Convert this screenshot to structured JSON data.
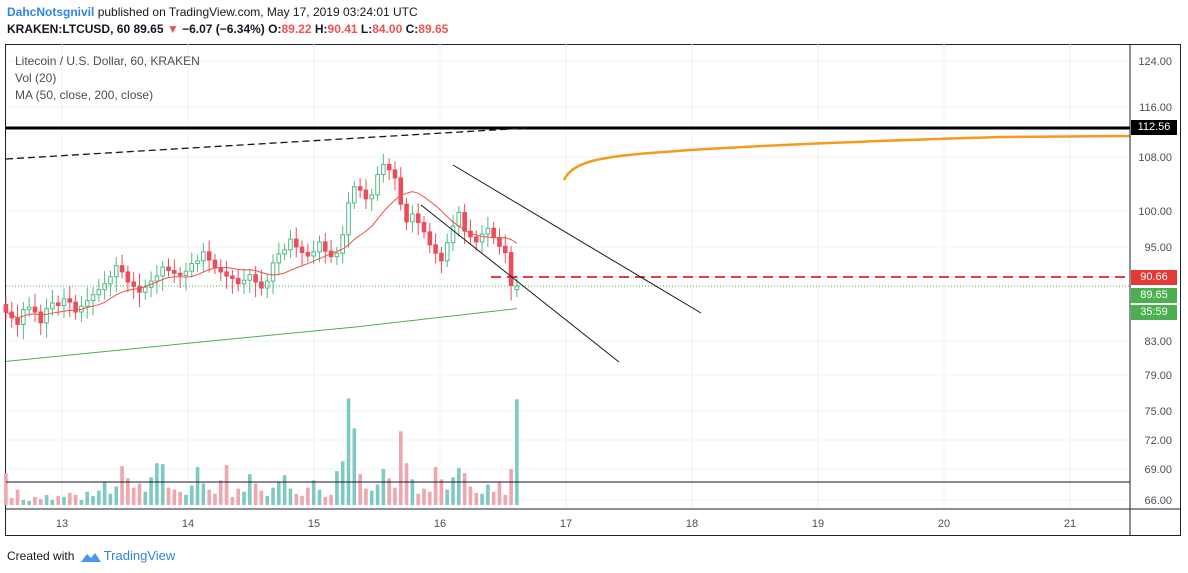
{
  "header": {
    "author": "DahcNotsgnivil",
    "published_text": "published on TradingView.com, May 17, 2019 03:24:01 UTC",
    "symbol_line": {
      "symbol": "KRAKEN:LTCUSD, 60",
      "last": "89.65",
      "change_arrow": "▼",
      "change": "−6.07 (−6.34%)",
      "o_label": "O:",
      "o_value": "89.22",
      "h_label": "H:",
      "h_value": "90.41",
      "l_label": "L:",
      "l_value": "84.00",
      "c_label": "C:",
      "c_value": "89.65"
    }
  },
  "legend": {
    "title": "Litecoin / U.S. Dollar, 60, KRAKEN",
    "volume": "Vol (20)",
    "ma": "MA (50, close, 200, close)"
  },
  "price_badges": {
    "resistance": "112.56",
    "level": "90.66",
    "last": "89.65",
    "countdown": "35:59"
  },
  "footer": {
    "created_with": "Created with",
    "brand": "TradingView"
  },
  "colors": {
    "up": "#53b987",
    "down": "#eb4d5c",
    "vol_up": "#7fc9c3",
    "vol_down": "#f0a6ad",
    "ma50": "#f0504a",
    "ma200": "#4caf50",
    "projection": "#f59a1b",
    "level": "#e53935",
    "accent": "#2e85e6"
  },
  "chart_data": {
    "type": "candlestick",
    "y_axis_ticks": [
      124.0,
      116.0,
      108.0,
      100.0,
      95.0,
      90.66,
      89.65,
      83.0,
      79.0,
      75.0,
      72.0,
      69.0,
      66.0
    ],
    "y_tick_labels": [
      "124.00",
      "116.00",
      "108.00",
      "100.00",
      "95.00",
      "83.00",
      "79.00",
      "75.00",
      "72.00",
      "69.00",
      "66.00"
    ],
    "x_axis_ticks": [
      "13",
      "14",
      "15",
      "16",
      "17",
      "18",
      "19",
      "20",
      "21"
    ],
    "closes": [
      86.5,
      85.8,
      85.0,
      86.8,
      87.1,
      86.5,
      85.2,
      86.9,
      87.6,
      87.3,
      88.1,
      87.7,
      86.5,
      87.2,
      87.9,
      88.6,
      89.2,
      89.9,
      90.7,
      92.3,
      91.4,
      90.1,
      89.6,
      88.9,
      89.5,
      90.2,
      90.8,
      92.1,
      91.6,
      91.2,
      90.9,
      91.5,
      92.6,
      93.0,
      94.3,
      93.1,
      92.0,
      91.4,
      90.8,
      90.5,
      89.9,
      90.3,
      91.0,
      90.1,
      89.4,
      90.2,
      92.7,
      94.0,
      94.6,
      96.1,
      95.0,
      94.2,
      93.7,
      94.3,
      95.7,
      94.4,
      93.6,
      94.1,
      96.7,
      101.2,
      103.6,
      103.1,
      101.8,
      102.4,
      105.4,
      106.9,
      106.1,
      104.9,
      101.0,
      98.5,
      99.6,
      98.4,
      97.1,
      95.3,
      94.1,
      93.0,
      95.6,
      97.9,
      99.8,
      97.2,
      96.4,
      95.7,
      96.8,
      97.6,
      96.3,
      95.1,
      94.2,
      89.7,
      89.65
    ],
    "opens": [
      87.4,
      86.5,
      85.8,
      85.0,
      86.8,
      87.1,
      86.5,
      85.2,
      86.9,
      87.6,
      87.3,
      88.1,
      87.7,
      86.5,
      87.2,
      87.9,
      88.6,
      89.2,
      89.9,
      90.7,
      92.3,
      91.4,
      90.1,
      89.6,
      88.9,
      89.5,
      90.2,
      90.8,
      92.1,
      91.6,
      91.2,
      90.9,
      91.5,
      92.6,
      93.0,
      94.3,
      93.1,
      92.0,
      91.4,
      90.8,
      90.5,
      89.9,
      90.3,
      91.0,
      90.1,
      89.4,
      90.2,
      92.7,
      94.0,
      94.6,
      96.1,
      95.0,
      94.2,
      93.7,
      94.3,
      95.7,
      94.4,
      93.6,
      94.1,
      96.7,
      101.2,
      103.6,
      103.1,
      101.8,
      102.4,
      105.4,
      106.9,
      106.1,
      104.9,
      101.0,
      98.5,
      99.6,
      98.4,
      97.1,
      95.3,
      94.1,
      93.0,
      95.6,
      97.9,
      99.8,
      97.2,
      96.4,
      95.7,
      96.8,
      97.6,
      96.3,
      95.1,
      94.2,
      89.22
    ],
    "volumes": [
      68.6,
      66.2,
      67.0,
      66.0,
      65.9,
      66.3,
      66.1,
      66.5,
      66.0,
      66.4,
      66.3,
      66.7,
      66.5,
      66.0,
      66.8,
      66.4,
      66.9,
      67.8,
      66.6,
      67.3,
      69.3,
      68.1,
      67.2,
      67.6,
      66.8,
      68.2,
      69.6,
      69.5,
      67.2,
      67.0,
      66.8,
      66.5,
      67.4,
      69.2,
      67.6,
      67.0,
      66.6,
      67.9,
      69.4,
      66.3,
      67.1,
      66.8,
      68.5,
      67.6,
      66.9,
      66.4,
      67.2,
      67.7,
      68.4,
      67.1,
      66.6,
      66.4,
      67.2,
      67.9,
      67.0,
      66.3,
      66.5,
      68.8,
      69.8,
      76.4,
      73.2,
      68.5,
      67.1,
      66.9,
      67.5,
      69.0,
      68.1,
      67.2,
      72.9,
      69.6,
      68.0,
      66.6,
      67.1,
      66.8,
      69.2,
      68.0,
      67.0,
      68.2,
      69.1,
      68.6,
      67.3,
      66.7,
      66.6,
      67.5,
      66.8,
      67.7,
      66.5,
      69.0,
      76.3
    ]
  }
}
